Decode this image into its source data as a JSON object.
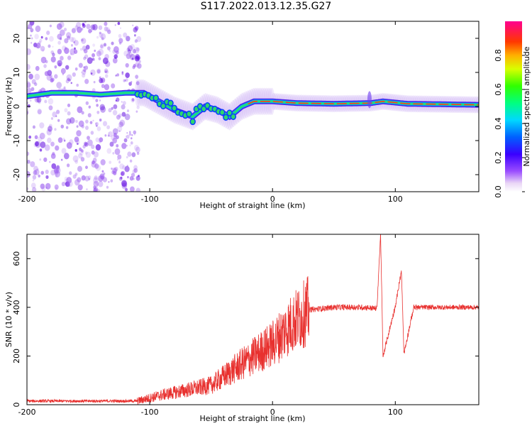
{
  "figure": {
    "title": "S117.2022.013.12.35.G27"
  },
  "chart_data": [
    {
      "type": "heatmap",
      "xlabel": "Height of straight line (km)",
      "ylabel": "Frequency (Hz)",
      "xlim": [
        -200,
        168
      ],
      "ylim": [
        -25,
        25
      ],
      "xticks": [
        -200,
        -100,
        0,
        100
      ],
      "yticks": [
        -20,
        -10,
        0,
        10,
        20
      ],
      "colorbar": {
        "label": "Normalized spectral amplitude",
        "range": [
          0,
          1
        ],
        "ticks": [
          0.0,
          0.2,
          0.4,
          0.6,
          0.8
        ]
      },
      "ridge": [
        {
          "x": -200,
          "y": 3
        },
        {
          "x": -180,
          "y": 4
        },
        {
          "x": -160,
          "y": 4
        },
        {
          "x": -140,
          "y": 3.5
        },
        {
          "x": -120,
          "y": 4
        },
        {
          "x": -105,
          "y": 4
        },
        {
          "x": -95,
          "y": 2
        },
        {
          "x": -80,
          "y": -1
        },
        {
          "x": -65,
          "y": -3
        },
        {
          "x": -55,
          "y": 0
        },
        {
          "x": -45,
          "y": -1
        },
        {
          "x": -35,
          "y": -3
        },
        {
          "x": -25,
          "y": 0
        },
        {
          "x": -15,
          "y": 1.5
        },
        {
          "x": 0,
          "y": 1.5
        },
        {
          "x": 20,
          "y": 1
        },
        {
          "x": 50,
          "y": 0.8
        },
        {
          "x": 80,
          "y": 1
        },
        {
          "x": 90,
          "y": 1.5
        },
        {
          "x": 110,
          "y": 0.8
        },
        {
          "x": 168,
          "y": 0.5
        }
      ]
    },
    {
      "type": "line",
      "xlabel": "Height of straight line (km)",
      "ylabel": "SNR (10 * v/v)",
      "xlim": [
        -200,
        168
      ],
      "ylim": [
        0,
        700
      ],
      "xticks": [
        -200,
        -100,
        0,
        100
      ],
      "yticks": [
        0,
        200,
        400,
        600
      ],
      "series": [
        {
          "color": "#e8312f",
          "trend": [
            {
              "x": -200,
              "y": 15
            },
            {
              "x": -110,
              "y": 15
            },
            {
              "x": -90,
              "y": 40
            },
            {
              "x": -70,
              "y": 60
            },
            {
              "x": -50,
              "y": 80
            },
            {
              "x": -30,
              "y": 150
            },
            {
              "x": -15,
              "y": 200
            },
            {
              "x": 0,
              "y": 250
            },
            {
              "x": 15,
              "y": 330
            },
            {
              "x": 30,
              "y": 390
            },
            {
              "x": 50,
              "y": 400
            },
            {
              "x": 75,
              "y": 400
            },
            {
              "x": 85,
              "y": 395
            },
            {
              "x": 88,
              "y": 700
            },
            {
              "x": 90,
              "y": 200
            },
            {
              "x": 100,
              "y": 405
            },
            {
              "x": 105,
              "y": 550
            },
            {
              "x": 107,
              "y": 210
            },
            {
              "x": 115,
              "y": 400
            },
            {
              "x": 168,
              "y": 400
            }
          ]
        }
      ]
    }
  ]
}
